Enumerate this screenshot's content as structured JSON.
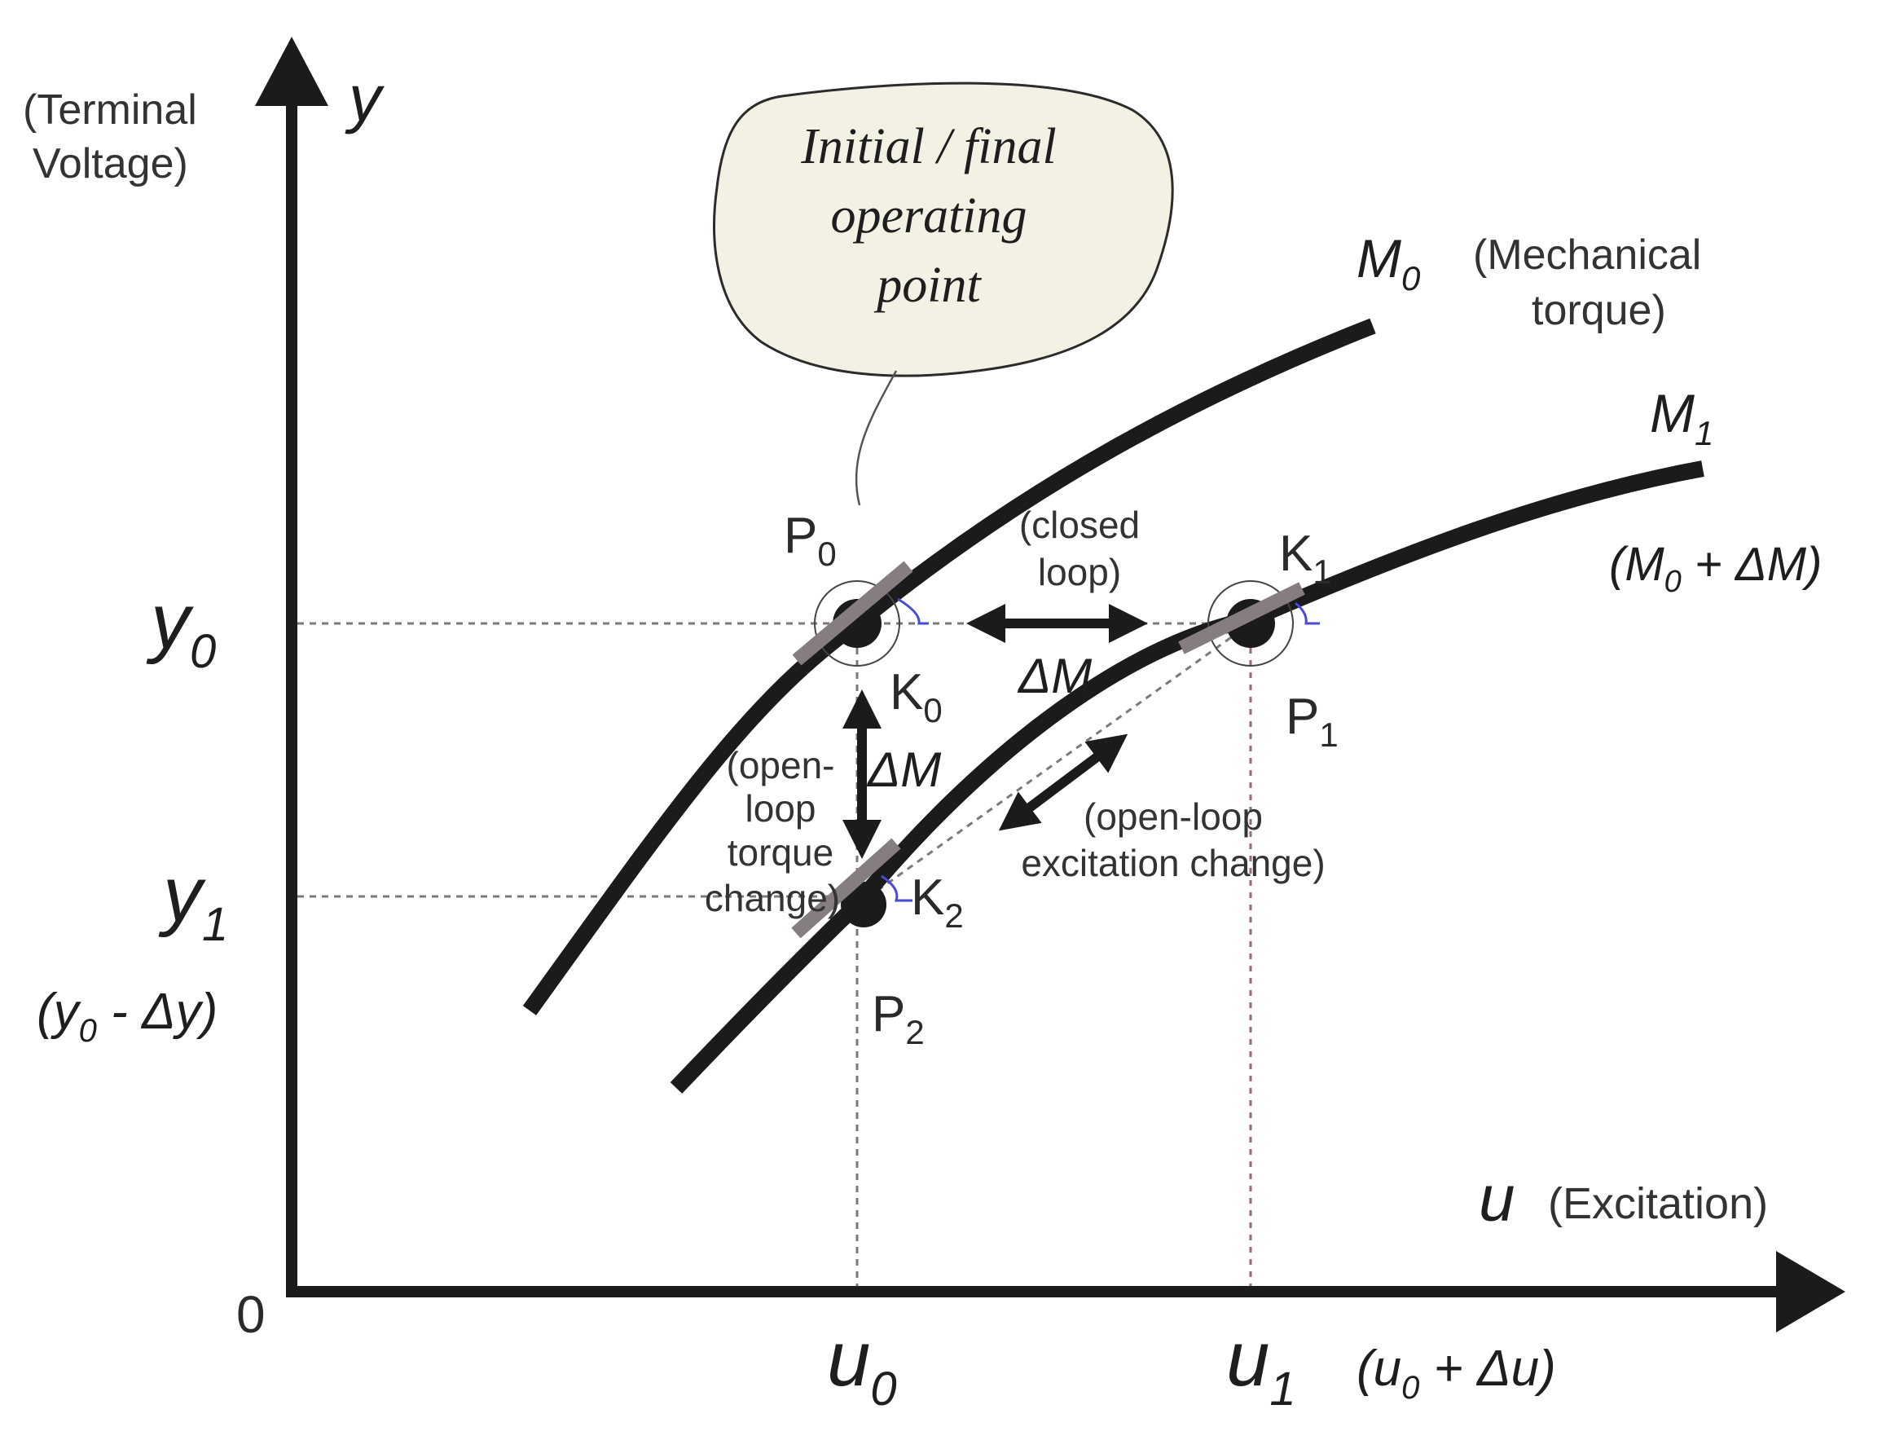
{
  "axes": {
    "y_symbol": "y",
    "y_label_line1": "(Terminal",
    "y_label_line2": "Voltage)",
    "x_symbol": "u",
    "x_label": "(Excitation)",
    "origin": "0"
  },
  "ticks": {
    "y0": "y",
    "y0_sub": "0",
    "y1": "y",
    "y1_sub": "1",
    "y1_expr_a": "(y",
    "y1_expr_sub": "0",
    "y1_expr_b": " - Δy)",
    "u0": "u",
    "u0_sub": "0",
    "u1": "u",
    "u1_sub": "1",
    "u1_expr_a": "(u",
    "u1_expr_sub": "0",
    "u1_expr_b": " + Δu)"
  },
  "callout": {
    "line1": "Initial / final",
    "line2": "operating",
    "line3": "point"
  },
  "curves": {
    "m0": "M",
    "m0_sub": "0",
    "m0_desc_line1": "(Mechanical",
    "m0_desc_line2": "torque)",
    "m1": "M",
    "m1_sub": "1",
    "m1_expr_a": "(M",
    "m1_expr_sub": "0",
    "m1_expr_b": " + ΔM)"
  },
  "points": {
    "p0": "P",
    "p0_sub": "0",
    "p1": "P",
    "p1_sub": "1",
    "p2": "P",
    "p2_sub": "2",
    "k0": "K",
    "k0_sub": "0",
    "k1": "K",
    "k1_sub": "1",
    "k2": "K",
    "k2_sub": "2"
  },
  "annotations": {
    "closed_loop_line1": "(closed",
    "closed_loop_line2": "loop)",
    "closed_delta": "ΔM",
    "open_torque_line1": "(open-",
    "open_torque_line2": "loop",
    "open_torque_line3": "torque",
    "open_torque_line4": "change)",
    "open_torque_delta": "ΔM",
    "open_exc_line1": "(open-loop",
    "open_exc_line2": "excitation change)"
  },
  "colors": {
    "curve": "#1b1b1b",
    "callout_fill": "#f2f1e3",
    "tangent": "#857d80",
    "angle_mark": "#4a4ad8"
  }
}
